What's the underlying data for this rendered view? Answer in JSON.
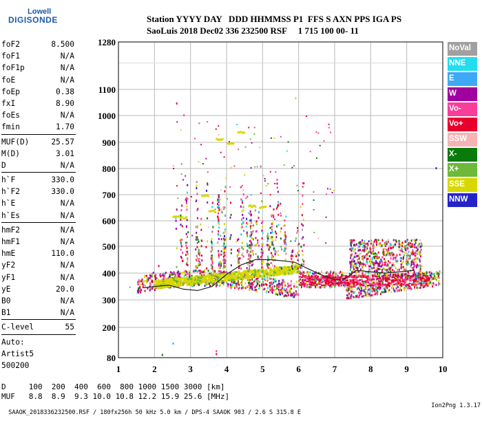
{
  "logo": {
    "line1": "Lowell",
    "line2": "DIGISONDE"
  },
  "header": {
    "labels": "Station YYYY DAY   DDD HHMMSS P1  FFS S AXN PPS IGA PS",
    "values": "SaoLuis 2018 Dec02 336 232500 RSF     1 715 100 00- 11"
  },
  "params_group1": [
    {
      "name": "foF2",
      "value": "8.500"
    },
    {
      "name": "foF1",
      "value": "N/A"
    },
    {
      "name": "foF1p",
      "value": "N/A"
    },
    {
      "name": "foE",
      "value": "N/A"
    },
    {
      "name": "foEp",
      "value": "0.38"
    },
    {
      "name": "fxI",
      "value": "8.90"
    },
    {
      "name": "foEs",
      "value": "N/A"
    },
    {
      "name": "fmin",
      "value": "1.70"
    }
  ],
  "params_group2": [
    {
      "name": "MUF(D)",
      "value": "25.57"
    },
    {
      "name": "M(D)",
      "value": "3.01"
    },
    {
      "name": "D",
      "value": "N/A"
    }
  ],
  "params_group3": [
    {
      "name": "h`F",
      "value": "330.0"
    },
    {
      "name": "h`F2",
      "value": "330.0"
    },
    {
      "name": "h`E",
      "value": "N/A"
    },
    {
      "name": "h`Es",
      "value": "N/A"
    }
  ],
  "params_group4": [
    {
      "name": "hmF2",
      "value": "N/A"
    },
    {
      "name": "hmF1",
      "value": "N/A"
    },
    {
      "name": "hmE",
      "value": "110.0"
    },
    {
      "name": "yF2",
      "value": "N/A"
    },
    {
      "name": "yF1",
      "value": "N/A"
    },
    {
      "name": "yE",
      "value": "20.0"
    },
    {
      "name": "B0",
      "value": "N/A"
    },
    {
      "name": "B1",
      "value": "N/A"
    }
  ],
  "clevel": {
    "name": "C-level",
    "value": "55"
  },
  "autoscale": {
    "line1": "Auto:",
    "line2": "Artist5",
    "line3": "500200"
  },
  "legend": [
    {
      "label": "NoVal",
      "color": "#a0a0a0"
    },
    {
      "label": "NNE",
      "color": "#22ddee"
    },
    {
      "label": "E",
      "color": "#3fa8f5"
    },
    {
      "label": "W",
      "color": "#a100a1"
    },
    {
      "label": "Vo-",
      "color": "#f83d9b"
    },
    {
      "label": "Vo+",
      "color": "#e8002d"
    },
    {
      "label": "SSW",
      "color": "#f7b3b3"
    },
    {
      "label": "X-",
      "color": "#0a7a0a"
    },
    {
      "label": "X+",
      "color": "#6db93a"
    },
    {
      "label": "SSE",
      "color": "#d8d800"
    },
    {
      "label": "NNW",
      "color": "#2323c8"
    }
  ],
  "footer": {
    "row1": "D     100  200  400  600  800 1000 1500 3000 [km]",
    "row2": "MUF   8.8  8.9  9.3 10.0 10.8 12.2 15.9 25.6 [MHz]"
  },
  "bottom": {
    "info": "SAAOK_2018336232500.RSF / 180fx256h 50 kHz 5.0 km / DPS-4 SAAOK 903 / 2.6 S 315.8 E",
    "version": "Ion2Png 1.3.17"
  },
  "chart_data": {
    "type": "scatter",
    "x_ticks": [
      1,
      2,
      3,
      4,
      5,
      6,
      7,
      8,
      9,
      10
    ],
    "y_ticks": [
      80,
      200,
      300,
      400,
      500,
      600,
      700,
      800,
      900,
      1000,
      1100,
      1280
    ],
    "xlim": [
      1,
      10
    ],
    "ylim": [
      80,
      1280
    ],
    "y_scale": "nonlinear ionogram height",
    "grid": true,
    "trace": {
      "x": [
        1.7,
        2.0,
        2.4,
        2.8,
        3.2,
        3.6,
        4.0,
        4.4,
        4.8,
        5.2,
        5.6,
        5.9,
        6.2,
        6.6,
        7.0,
        7.3,
        7.6,
        8.0,
        8.4,
        8.8,
        9.2
      ],
      "y": [
        345,
        350,
        355,
        340,
        335,
        350,
        395,
        430,
        450,
        450,
        445,
        440,
        420,
        395,
        375,
        380,
        410,
        405,
        400,
        405,
        410
      ]
    },
    "layers": {
      "main_band_x": [
        1.5,
        10
      ],
      "f_layer_base_y": 355
    }
  }
}
